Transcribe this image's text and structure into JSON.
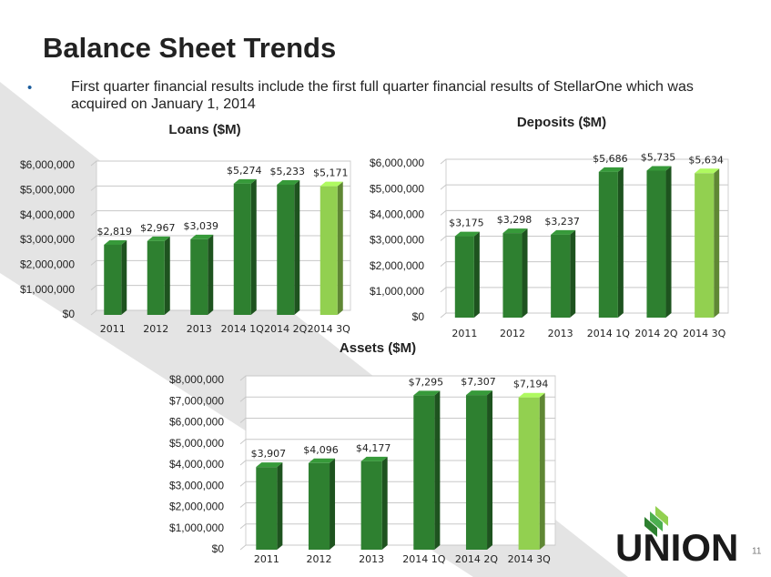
{
  "title": "Balance Sheet Trends",
  "bullet": "First quarter financial results include the first full quarter financial results of StellarOne which was acquired on January 1, 2014",
  "logo": "UNION",
  "page_number": "11",
  "chart_data": [
    {
      "type": "bar",
      "title": "Loans ($M)",
      "categories": [
        "2011",
        "2012",
        "2013",
        "2014 1Q",
        "2014 2Q",
        "2014 3Q"
      ],
      "values": [
        2819000,
        2967000,
        3039000,
        5274000,
        5233000,
        5171000
      ],
      "value_labels": [
        "$2,819",
        "$2,967",
        "$3,039",
        "$5,274",
        "$5,233",
        "$5,171"
      ],
      "colors": [
        "#2e8030",
        "#2e8030",
        "#2e8030",
        "#2e8030",
        "#2e8030",
        "#92d050"
      ],
      "ylim": [
        0,
        6000000
      ],
      "yticks": [
        {
          "value": 0,
          "label": "$0"
        },
        {
          "value": 1000000,
          "label": "$1,000,000"
        },
        {
          "value": 2000000,
          "label": "$2,000,000"
        },
        {
          "value": 3000000,
          "label": "$3,000,000"
        },
        {
          "value": 4000000,
          "label": "$4,000,000"
        },
        {
          "value": 5000000,
          "label": "$5,000,000"
        },
        {
          "value": 6000000,
          "label": "$6,000,000"
        }
      ],
      "grid": true
    },
    {
      "type": "bar",
      "title": "Deposits ($M)",
      "categories": [
        "2011",
        "2012",
        "2013",
        "2014 1Q",
        "2014 2Q",
        "2014 3Q"
      ],
      "values": [
        3175000,
        3298000,
        3237000,
        5686000,
        5735000,
        5634000
      ],
      "value_labels": [
        "$3,175",
        "$3,298",
        "$3,237",
        "$5,686",
        "$5,735",
        "$5,634"
      ],
      "colors": [
        "#2e8030",
        "#2e8030",
        "#2e8030",
        "#2e8030",
        "#2e8030",
        "#92d050"
      ],
      "ylim": [
        0,
        6000000
      ],
      "yticks": [
        {
          "value": 0,
          "label": "$0"
        },
        {
          "value": 1000000,
          "label": "$1,000,000"
        },
        {
          "value": 2000000,
          "label": "$2,000,000"
        },
        {
          "value": 3000000,
          "label": "$3,000,000"
        },
        {
          "value": 4000000,
          "label": "$4,000,000"
        },
        {
          "value": 5000000,
          "label": "$5,000,000"
        },
        {
          "value": 6000000,
          "label": "$6,000,000"
        }
      ],
      "grid": true
    },
    {
      "type": "bar",
      "title": "Assets ($M)",
      "categories": [
        "2011",
        "2012",
        "2013",
        "2014 1Q",
        "2014 2Q",
        "2014 3Q"
      ],
      "values": [
        3907000,
        4096000,
        4177000,
        7295000,
        7307000,
        7194000
      ],
      "value_labels": [
        "$3,907",
        "$4,096",
        "$4,177",
        "$7,295",
        "$7,307",
        "$7,194"
      ],
      "colors": [
        "#2e8030",
        "#2e8030",
        "#2e8030",
        "#2e8030",
        "#2e8030",
        "#92d050"
      ],
      "ylim": [
        0,
        8000000
      ],
      "yticks": [
        {
          "value": 0,
          "label": "$0"
        },
        {
          "value": 1000000,
          "label": "$1,000,000"
        },
        {
          "value": 2000000,
          "label": "$2,000,000"
        },
        {
          "value": 3000000,
          "label": "$3,000,000"
        },
        {
          "value": 4000000,
          "label": "$4,000,000"
        },
        {
          "value": 5000000,
          "label": "$5,000,000"
        },
        {
          "value": 6000000,
          "label": "$6,000,000"
        },
        {
          "value": 7000000,
          "label": "$7,000,000"
        },
        {
          "value": 8000000,
          "label": "$8,000,000"
        }
      ],
      "grid": true
    }
  ]
}
